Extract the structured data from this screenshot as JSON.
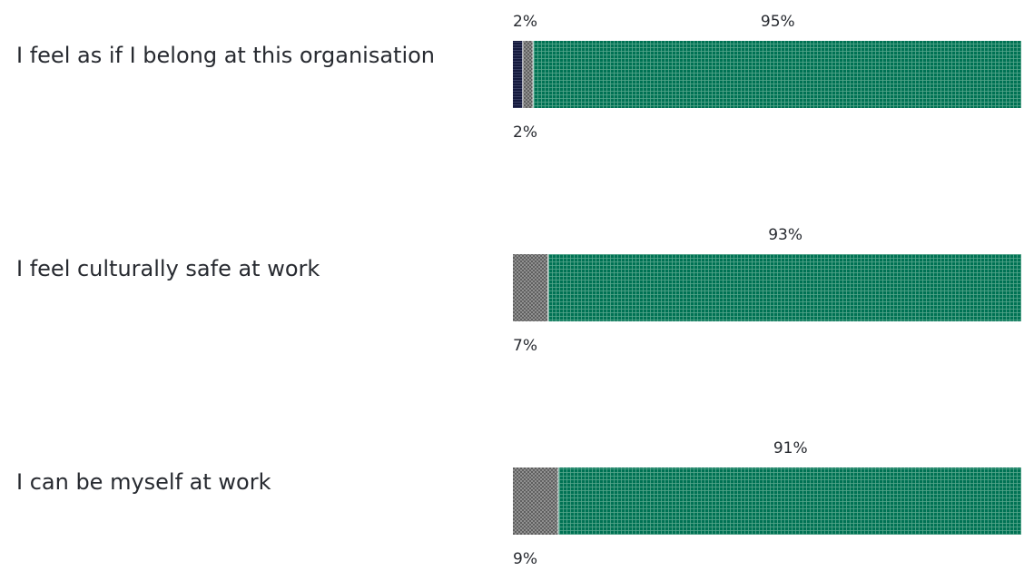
{
  "chart_data": {
    "type": "bar",
    "orientation": "horizontal",
    "stacked": true,
    "xlim": [
      0,
      100
    ],
    "title": "",
    "xlabel": "",
    "ylabel": "",
    "legend": "none",
    "categories": [
      "I feel as if I belong at this organisation",
      "I feel culturally safe at work",
      "I can be myself at work"
    ],
    "series": [
      {
        "key": "first",
        "color": "#151a3d",
        "pattern": "dense-dark",
        "values": [
          2,
          0,
          0
        ],
        "labels": [
          "2%",
          "",
          ""
        ]
      },
      {
        "key": "second",
        "color": "#8f8f8f",
        "pattern": "grey-hatch",
        "values": [
          2,
          7,
          9
        ],
        "labels": [
          "2%",
          "7%",
          "9%"
        ]
      },
      {
        "key": "third",
        "color": "#007254",
        "pattern": "green-grid",
        "values": [
          95,
          93,
          91
        ],
        "labels": [
          "95%",
          "93%",
          "91%"
        ]
      }
    ]
  }
}
